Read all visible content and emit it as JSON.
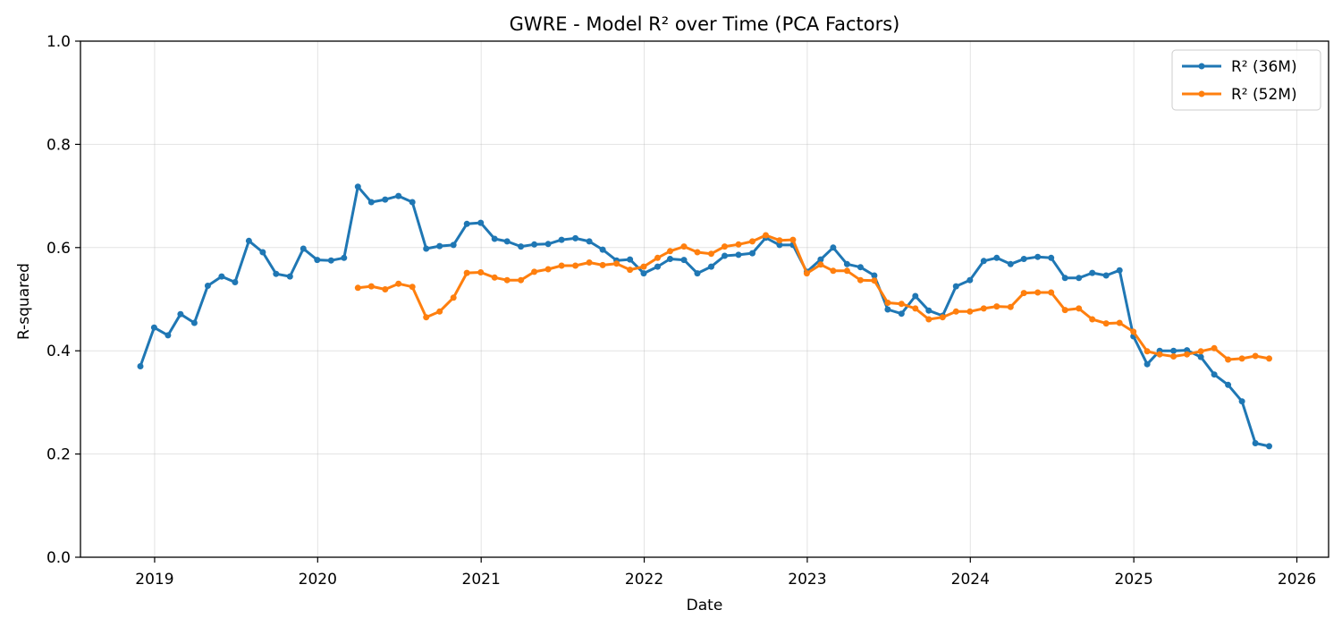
{
  "chart_data": {
    "type": "line",
    "title": "GWRE - Model R² over Time (PCA Factors)",
    "xlabel": "Date",
    "ylabel": "R-squared",
    "ylim": [
      0,
      1
    ],
    "xlim": [
      "2018-07-19",
      "2026-03-13"
    ],
    "x_ticks": [
      "2019",
      "2020",
      "2021",
      "2022",
      "2023",
      "2024",
      "2025",
      "2026"
    ],
    "y_ticks": [
      "0.0",
      "0.2",
      "0.4",
      "0.6",
      "0.8",
      "1.0"
    ],
    "grid": true,
    "legend_position": "top-right",
    "series": [
      {
        "name": "R² (36M)",
        "color": "#1f77b4",
        "points": [
          [
            "2018-11-30",
            0.37
          ],
          [
            "2018-12-31",
            0.445
          ],
          [
            "2019-01-31",
            0.43
          ],
          [
            "2019-02-28",
            0.471
          ],
          [
            "2019-03-31",
            0.454
          ],
          [
            "2019-04-30",
            0.526
          ],
          [
            "2019-05-31",
            0.544
          ],
          [
            "2019-06-30",
            0.533
          ],
          [
            "2019-07-31",
            0.613
          ],
          [
            "2019-08-31",
            0.591
          ],
          [
            "2019-09-30",
            0.549
          ],
          [
            "2019-10-31",
            0.544
          ],
          [
            "2019-11-30",
            0.598
          ],
          [
            "2019-12-31",
            0.576
          ],
          [
            "2020-01-31",
            0.575
          ],
          [
            "2020-02-29",
            0.58
          ],
          [
            "2020-03-31",
            0.718
          ],
          [
            "2020-04-30",
            0.688
          ],
          [
            "2020-05-31",
            0.693
          ],
          [
            "2020-06-30",
            0.7
          ],
          [
            "2020-07-31",
            0.688
          ],
          [
            "2020-08-31",
            0.598
          ],
          [
            "2020-09-30",
            0.603
          ],
          [
            "2020-10-31",
            0.605
          ],
          [
            "2020-11-30",
            0.646
          ],
          [
            "2020-12-31",
            0.648
          ],
          [
            "2021-01-31",
            0.617
          ],
          [
            "2021-02-28",
            0.612
          ],
          [
            "2021-03-31",
            0.602
          ],
          [
            "2021-04-30",
            0.606
          ],
          [
            "2021-05-31",
            0.607
          ],
          [
            "2021-06-30",
            0.615
          ],
          [
            "2021-07-31",
            0.618
          ],
          [
            "2021-08-31",
            0.612
          ],
          [
            "2021-09-30",
            0.596
          ],
          [
            "2021-10-31",
            0.575
          ],
          [
            "2021-11-30",
            0.577
          ],
          [
            "2021-12-31",
            0.55
          ],
          [
            "2022-01-31",
            0.563
          ],
          [
            "2022-02-28",
            0.578
          ],
          [
            "2022-03-31",
            0.576
          ],
          [
            "2022-04-30",
            0.55
          ],
          [
            "2022-05-31",
            0.563
          ],
          [
            "2022-06-30",
            0.584
          ],
          [
            "2022-07-31",
            0.586
          ],
          [
            "2022-08-31",
            0.589
          ],
          [
            "2022-09-30",
            0.619
          ],
          [
            "2022-10-31",
            0.605
          ],
          [
            "2022-11-30",
            0.605
          ],
          [
            "2022-12-31",
            0.553
          ],
          [
            "2023-01-31",
            0.577
          ],
          [
            "2023-02-28",
            0.6
          ],
          [
            "2023-03-31",
            0.568
          ],
          [
            "2023-04-30",
            0.562
          ],
          [
            "2023-05-31",
            0.546
          ],
          [
            "2023-06-30",
            0.48
          ],
          [
            "2023-07-31",
            0.472
          ],
          [
            "2023-08-31",
            0.506
          ],
          [
            "2023-09-30",
            0.478
          ],
          [
            "2023-10-31",
            0.468
          ],
          [
            "2023-11-30",
            0.525
          ],
          [
            "2023-12-31",
            0.537
          ],
          [
            "2024-01-31",
            0.574
          ],
          [
            "2024-02-29",
            0.58
          ],
          [
            "2024-03-31",
            0.568
          ],
          [
            "2024-04-30",
            0.578
          ],
          [
            "2024-05-31",
            0.582
          ],
          [
            "2024-06-30",
            0.58
          ],
          [
            "2024-07-31",
            0.541
          ],
          [
            "2024-08-31",
            0.541
          ],
          [
            "2024-09-30",
            0.551
          ],
          [
            "2024-10-31",
            0.546
          ],
          [
            "2024-11-30",
            0.556
          ],
          [
            "2024-12-31",
            0.428
          ],
          [
            "2025-01-31",
            0.374
          ],
          [
            "2025-02-28",
            0.4
          ],
          [
            "2025-03-31",
            0.4
          ],
          [
            "2025-04-30",
            0.401
          ],
          [
            "2025-05-31",
            0.388
          ],
          [
            "2025-06-30",
            0.354
          ],
          [
            "2025-07-31",
            0.334
          ],
          [
            "2025-08-31",
            0.302
          ],
          [
            "2025-09-30",
            0.221
          ],
          [
            "2025-10-31",
            0.215
          ]
        ]
      },
      {
        "name": "R² (52M)",
        "color": "#ff7f0e",
        "points": [
          [
            "2020-03-31",
            0.522
          ],
          [
            "2020-04-30",
            0.525
          ],
          [
            "2020-05-31",
            0.519
          ],
          [
            "2020-06-30",
            0.53
          ],
          [
            "2020-07-31",
            0.524
          ],
          [
            "2020-08-31",
            0.465
          ],
          [
            "2020-09-30",
            0.476
          ],
          [
            "2020-10-31",
            0.503
          ],
          [
            "2020-11-30",
            0.551
          ],
          [
            "2020-12-31",
            0.552
          ],
          [
            "2021-01-31",
            0.542
          ],
          [
            "2021-02-28",
            0.537
          ],
          [
            "2021-03-31",
            0.537
          ],
          [
            "2021-04-30",
            0.553
          ],
          [
            "2021-05-31",
            0.558
          ],
          [
            "2021-06-30",
            0.565
          ],
          [
            "2021-07-31",
            0.565
          ],
          [
            "2021-08-31",
            0.571
          ],
          [
            "2021-09-30",
            0.566
          ],
          [
            "2021-10-31",
            0.569
          ],
          [
            "2021-11-30",
            0.557
          ],
          [
            "2021-12-31",
            0.563
          ],
          [
            "2022-01-31",
            0.58
          ],
          [
            "2022-02-28",
            0.593
          ],
          [
            "2022-03-31",
            0.602
          ],
          [
            "2022-04-30",
            0.591
          ],
          [
            "2022-05-31",
            0.588
          ],
          [
            "2022-06-30",
            0.602
          ],
          [
            "2022-07-31",
            0.606
          ],
          [
            "2022-08-31",
            0.612
          ],
          [
            "2022-09-30",
            0.624
          ],
          [
            "2022-10-31",
            0.614
          ],
          [
            "2022-11-30",
            0.615
          ],
          [
            "2022-12-31",
            0.55
          ],
          [
            "2023-01-31",
            0.567
          ],
          [
            "2023-02-28",
            0.555
          ],
          [
            "2023-03-31",
            0.555
          ],
          [
            "2023-04-30",
            0.537
          ],
          [
            "2023-05-31",
            0.536
          ],
          [
            "2023-06-30",
            0.493
          ],
          [
            "2023-07-31",
            0.491
          ],
          [
            "2023-08-31",
            0.482
          ],
          [
            "2023-09-30",
            0.461
          ],
          [
            "2023-10-31",
            0.465
          ],
          [
            "2023-11-30",
            0.476
          ],
          [
            "2023-12-31",
            0.476
          ],
          [
            "2024-01-31",
            0.482
          ],
          [
            "2024-02-29",
            0.486
          ],
          [
            "2024-03-31",
            0.485
          ],
          [
            "2024-04-30",
            0.512
          ],
          [
            "2024-05-31",
            0.513
          ],
          [
            "2024-06-30",
            0.513
          ],
          [
            "2024-07-31",
            0.479
          ],
          [
            "2024-08-31",
            0.482
          ],
          [
            "2024-09-30",
            0.461
          ],
          [
            "2024-10-31",
            0.453
          ],
          [
            "2024-11-30",
            0.454
          ],
          [
            "2024-12-31",
            0.437
          ],
          [
            "2025-01-31",
            0.399
          ],
          [
            "2025-02-28",
            0.393
          ],
          [
            "2025-03-31",
            0.389
          ],
          [
            "2025-04-30",
            0.393
          ],
          [
            "2025-05-31",
            0.399
          ],
          [
            "2025-06-30",
            0.405
          ],
          [
            "2025-07-31",
            0.383
          ],
          [
            "2025-08-31",
            0.385
          ],
          [
            "2025-09-30",
            0.39
          ],
          [
            "2025-10-31",
            0.385
          ]
        ]
      }
    ]
  }
}
